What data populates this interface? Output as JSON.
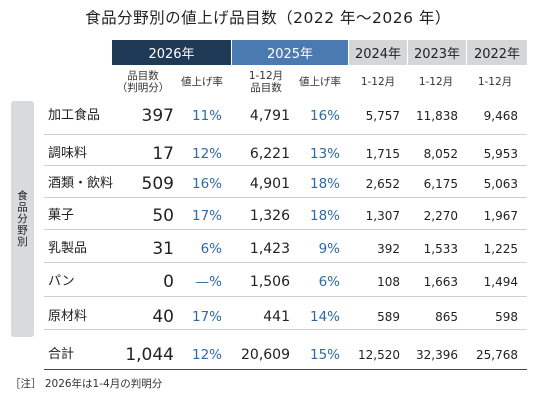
{
  "title": "食品分野別の値上げ品目数（2022 年～2026 年）",
  "side_label": "食品分野別",
  "headers": {
    "y2026": "2026年",
    "y2025": "2025年",
    "y2024": "2024年",
    "y2023": "2023年",
    "y2022": "2022年"
  },
  "subheaders": {
    "count_2026_line1": "品目数",
    "count_2026_line2": "（判明分）",
    "rate_2026": "値上げ率",
    "count_2025_line1": "1-12月",
    "count_2025_line2": "品目数",
    "rate_2025": "値上げ率",
    "m2024": "1-12月",
    "m2023": "1-12月",
    "m2022": "1-12月"
  },
  "rows": [
    {
      "name": "加工食品",
      "c2026": "397",
      "r2026": "11%",
      "c2025": "4,791",
      "r2025": "16%",
      "y2024": "5,757",
      "y2023": "11,838",
      "y2022": "9,468"
    },
    {
      "name": "調味料",
      "c2026": "17",
      "r2026": "12%",
      "c2025": "6,221",
      "r2025": "13%",
      "y2024": "1,715",
      "y2023": "8,052",
      "y2022": "5,953"
    },
    {
      "name": "酒類・飲料",
      "c2026": "509",
      "r2026": "16%",
      "c2025": "4,901",
      "r2025": "18%",
      "y2024": "2,652",
      "y2023": "6,175",
      "y2022": "5,063"
    },
    {
      "name": "菓子",
      "c2026": "50",
      "r2026": "17%",
      "c2025": "1,326",
      "r2025": "18%",
      "y2024": "1,307",
      "y2023": "2,270",
      "y2022": "1,967"
    },
    {
      "name": "乳製品",
      "c2026": "31",
      "r2026": "6%",
      "c2025": "1,423",
      "r2025": "9%",
      "y2024": "392",
      "y2023": "1,533",
      "y2022": "1,225"
    },
    {
      "name": "パン",
      "c2026": "0",
      "r2026": "—%",
      "c2025": "1,506",
      "r2025": "6%",
      "y2024": "108",
      "y2023": "1,663",
      "y2022": "1,494"
    },
    {
      "name": "原材料",
      "c2026": "40",
      "r2026": "17%",
      "c2025": "441",
      "r2025": "14%",
      "y2024": "589",
      "y2023": "865",
      "y2022": "598"
    }
  ],
  "total": {
    "name": "合計",
    "c2026": "1,044",
    "r2026": "12%",
    "c2025": "20,609",
    "r2025": "15%",
    "y2024": "12,520",
    "y2023": "32,396",
    "y2022": "25,768"
  },
  "note": "［注］ 2026年は1-4月の判明分",
  "colors": {
    "header_2026": "#1f3a57",
    "header_2025": "#4b7ab0",
    "header_past": "#d5d6d7",
    "rate_text": "#2d6aa8"
  }
}
